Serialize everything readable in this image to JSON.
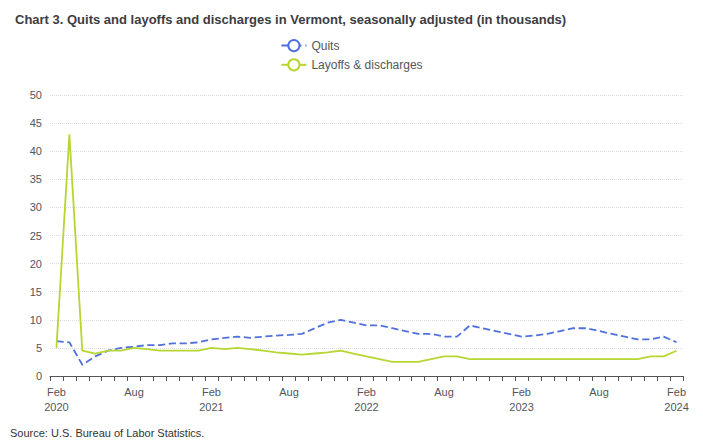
{
  "chart_data": {
    "type": "line",
    "title": "Chart 3. Quits and layoffs and discharges in Vermont, seasonally adjusted (in thousands)",
    "annotations": [
      "Source: U.S. Bureau of Labor Statistics."
    ],
    "categories": [
      "Feb\n2020",
      null,
      null,
      null,
      null,
      null,
      "Aug",
      null,
      null,
      null,
      null,
      null,
      "Feb\n2021",
      null,
      null,
      null,
      null,
      null,
      "Aug",
      null,
      null,
      null,
      null,
      null,
      "Feb\n2022",
      null,
      null,
      null,
      null,
      null,
      "Aug",
      null,
      null,
      null,
      null,
      null,
      "Feb\n2023",
      null,
      null,
      null,
      null,
      null,
      "Aug",
      null,
      null,
      null,
      null,
      null,
      "Feb\n2024"
    ],
    "series": [
      {
        "name": "Quits",
        "line_style": "dashed",
        "values": [
          6.2,
          6.0,
          2.0,
          3.5,
          4.5,
          5.0,
          5.2,
          5.5,
          5.5,
          5.8,
          5.8,
          6.0,
          6.5,
          6.8,
          7.0,
          6.8,
          7.0,
          7.2,
          7.3,
          7.5,
          8.5,
          9.5,
          10.0,
          9.5,
          9.0,
          9.0,
          8.5,
          8.0,
          7.5,
          7.5,
          7.0,
          7.0,
          9.0,
          8.5,
          8.0,
          7.5,
          7.0,
          7.2,
          7.5,
          8.0,
          8.5,
          8.5,
          8.0,
          7.5,
          7.0,
          6.5,
          6.5,
          7.0,
          6.0
        ]
      },
      {
        "name": "Layoffs & discharges",
        "line_style": "solid",
        "values": [
          5.0,
          43.0,
          4.5,
          4.0,
          4.5,
          4.5,
          5.0,
          4.8,
          4.5,
          4.5,
          4.5,
          4.5,
          5.0,
          4.8,
          5.0,
          4.8,
          4.5,
          4.2,
          4.0,
          3.8,
          4.0,
          4.2,
          4.5,
          4.0,
          3.5,
          3.0,
          2.5,
          2.5,
          2.5,
          3.0,
          3.5,
          3.5,
          3.0,
          3.0,
          3.0,
          3.0,
          3.0,
          3.0,
          3.0,
          3.0,
          3.0,
          3.0,
          3.0,
          3.0,
          3.0,
          3.0,
          3.5,
          3.5,
          4.5
        ]
      }
    ],
    "ylim": [
      0,
      50
    ],
    "yticks": [
      0,
      5,
      10,
      15,
      20,
      25,
      30,
      35,
      40,
      45,
      50
    ],
    "grid": true
  }
}
